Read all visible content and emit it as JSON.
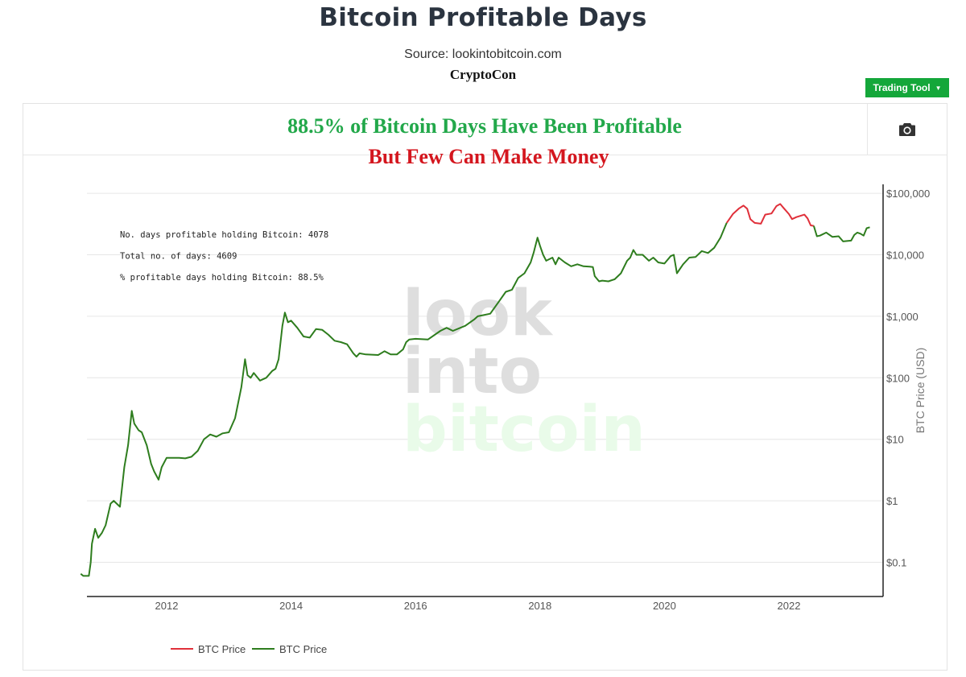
{
  "page": {
    "title": "Bitcoin Profitable Days",
    "source": "Source: lookintobitcoin.com",
    "author": "CryptoCon"
  },
  "toolbar": {
    "trading_tool_label": "Trading Tool",
    "camera_icon": "camera-icon"
  },
  "colors": {
    "green_series": "#2e7d1e",
    "red_series": "#e0303a",
    "headline_green": "#22a84a",
    "headline_red": "#d4161e",
    "button_green": "#14a73a",
    "watermark_gray": "#dedede",
    "watermark_green": "#e9fbe9"
  },
  "chart_data": {
    "type": "line",
    "title_line1": "88.5% of Bitcoin Days Have Been Profitable",
    "title_line2": "But Few Can Make Money",
    "ylabel": "BTC Price (USD)",
    "yscale": "log",
    "ylim": [
      0.03,
      150000
    ],
    "xlim": [
      2010.62,
      2023.35
    ],
    "y_ticks": [
      0.1,
      1,
      10,
      100,
      1000,
      10000,
      100000
    ],
    "y_tick_labels": [
      "$0.1",
      "$1",
      "$10",
      "$100",
      "$1,000",
      "$10,000",
      "$100,000"
    ],
    "x_ticks": [
      2012,
      2014,
      2016,
      2018,
      2020,
      2022
    ],
    "x_tick_labels": [
      "2012",
      "2014",
      "2016",
      "2018",
      "2020",
      "2022"
    ],
    "grid": true,
    "legend_position": "bottom-left",
    "annotations": [
      "No. days profitable holding Bitcoin: 4078",
      "Total no. of days: 4609",
      "% profitable days holding Bitcoin: 88.5%"
    ],
    "watermark": [
      "look",
      "into",
      "bitcoin"
    ],
    "series": [
      {
        "name": "BTC Price",
        "color": "red",
        "segments": [
          [
            [
              2021.0,
              33000
            ],
            [
              2021.1,
              46000
            ],
            [
              2021.2,
              57000
            ],
            [
              2021.27,
              63000
            ],
            [
              2021.33,
              56000
            ],
            [
              2021.38,
              38000
            ],
            [
              2021.45,
              33000
            ],
            [
              2021.55,
              32000
            ],
            [
              2021.62,
              45000
            ],
            [
              2021.72,
              47000
            ],
            [
              2021.8,
              62000
            ],
            [
              2021.86,
              67000
            ],
            [
              2021.92,
              57000
            ],
            [
              2022.0,
              46000
            ],
            [
              2022.05,
              38000
            ],
            [
              2022.12,
              41000
            ],
            [
              2022.25,
              45000
            ],
            [
              2022.3,
              39000
            ],
            [
              2022.35,
              30000
            ],
            [
              2022.4,
              29500
            ]
          ]
        ]
      },
      {
        "name": "BTC Price",
        "color": "green",
        "segments": [
          [
            [
              2010.62,
              0.065
            ],
            [
              2010.66,
              0.06
            ],
            [
              2010.75,
              0.06
            ],
            [
              2010.78,
              0.1
            ],
            [
              2010.8,
              0.2
            ],
            [
              2010.85,
              0.35
            ],
            [
              2010.9,
              0.25
            ],
            [
              2010.96,
              0.3
            ],
            [
              2011.02,
              0.4
            ],
            [
              2011.1,
              0.9
            ],
            [
              2011.15,
              1.0
            ],
            [
              2011.25,
              0.8
            ],
            [
              2011.32,
              3.5
            ],
            [
              2011.38,
              8
            ],
            [
              2011.44,
              29
            ],
            [
              2011.48,
              18
            ],
            [
              2011.55,
              14
            ],
            [
              2011.6,
              13
            ],
            [
              2011.68,
              8
            ],
            [
              2011.75,
              4
            ],
            [
              2011.8,
              3
            ],
            [
              2011.87,
              2.2
            ],
            [
              2011.92,
              3.5
            ],
            [
              2012.0,
              5
            ],
            [
              2012.1,
              5
            ],
            [
              2012.2,
              5
            ],
            [
              2012.3,
              4.9
            ],
            [
              2012.4,
              5.2
            ],
            [
              2012.5,
              6.5
            ],
            [
              2012.6,
              10
            ],
            [
              2012.7,
              12
            ],
            [
              2012.8,
              11
            ],
            [
              2012.9,
              12.5
            ],
            [
              2013.0,
              13
            ],
            [
              2013.1,
              22
            ],
            [
              2013.2,
              70
            ],
            [
              2013.26,
              200
            ],
            [
              2013.3,
              110
            ],
            [
              2013.35,
              100
            ],
            [
              2013.4,
              120
            ],
            [
              2013.5,
              90
            ],
            [
              2013.6,
              100
            ],
            [
              2013.7,
              130
            ],
            [
              2013.75,
              140
            ],
            [
              2013.8,
              200
            ],
            [
              2013.86,
              700
            ],
            [
              2013.9,
              1150
            ],
            [
              2013.95,
              800
            ],
            [
              2014.0,
              850
            ],
            [
              2014.1,
              650
            ],
            [
              2014.2,
              470
            ],
            [
              2014.3,
              450
            ],
            [
              2014.4,
              620
            ],
            [
              2014.5,
              600
            ],
            [
              2014.6,
              500
            ],
            [
              2014.7,
              400
            ],
            [
              2014.8,
              380
            ],
            [
              2014.9,
              350
            ],
            [
              2015.0,
              250
            ],
            [
              2015.05,
              220
            ],
            [
              2015.1,
              250
            ],
            [
              2015.2,
              240
            ],
            [
              2015.4,
              235
            ],
            [
              2015.5,
              270
            ],
            [
              2015.6,
              240
            ],
            [
              2015.7,
              240
            ],
            [
              2015.8,
              290
            ],
            [
              2015.85,
              380
            ],
            [
              2015.9,
              420
            ],
            [
              2016.0,
              430
            ],
            [
              2016.2,
              420
            ],
            [
              2016.4,
              580
            ],
            [
              2016.5,
              650
            ],
            [
              2016.6,
              580
            ],
            [
              2016.8,
              700
            ],
            [
              2016.95,
              900
            ],
            [
              2017.0,
              1000
            ],
            [
              2017.2,
              1100
            ],
            [
              2017.35,
              1800
            ],
            [
              2017.45,
              2500
            ],
            [
              2017.55,
              2700
            ],
            [
              2017.65,
              4200
            ],
            [
              2017.75,
              5000
            ],
            [
              2017.85,
              7500
            ],
            [
              2017.9,
              11000
            ],
            [
              2017.96,
              19000
            ],
            [
              2018.0,
              14000
            ],
            [
              2018.05,
              10000
            ],
            [
              2018.1,
              8000
            ],
            [
              2018.2,
              9000
            ],
            [
              2018.25,
              7000
            ],
            [
              2018.3,
              9000
            ],
            [
              2018.4,
              7500
            ],
            [
              2018.5,
              6500
            ],
            [
              2018.6,
              7000
            ],
            [
              2018.7,
              6500
            ],
            [
              2018.8,
              6400
            ],
            [
              2018.85,
              6300
            ],
            [
              2018.88,
              4500
            ],
            [
              2018.95,
              3700
            ],
            [
              2019.0,
              3800
            ],
            [
              2019.1,
              3700
            ],
            [
              2019.2,
              4000
            ],
            [
              2019.3,
              5000
            ],
            [
              2019.4,
              8000
            ],
            [
              2019.45,
              9000
            ],
            [
              2019.5,
              12000
            ],
            [
              2019.55,
              10000
            ],
            [
              2019.65,
              10000
            ],
            [
              2019.75,
              8000
            ],
            [
              2019.82,
              9000
            ],
            [
              2019.9,
              7500
            ],
            [
              2020.0,
              7200
            ],
            [
              2020.1,
              9500
            ],
            [
              2020.15,
              10000
            ],
            [
              2020.2,
              5000
            ],
            [
              2020.3,
              7000
            ],
            [
              2020.4,
              9000
            ],
            [
              2020.5,
              9200
            ],
            [
              2020.6,
              11500
            ],
            [
              2020.7,
              10700
            ],
            [
              2020.8,
              13000
            ],
            [
              2020.9,
              19000
            ],
            [
              2020.97,
              28000
            ],
            [
              2021.0,
              33000
            ]
          ],
          [
            [
              2022.4,
              29500
            ],
            [
              2022.45,
              20000
            ],
            [
              2022.5,
              20500
            ],
            [
              2022.6,
              23000
            ],
            [
              2022.7,
              19500
            ],
            [
              2022.8,
              20000
            ],
            [
              2022.87,
              16500
            ],
            [
              2022.95,
              16800
            ],
            [
              2023.0,
              17000
            ],
            [
              2023.05,
              21000
            ],
            [
              2023.1,
              23000
            ],
            [
              2023.15,
              22000
            ],
            [
              2023.2,
              20500
            ],
            [
              2023.25,
              27000
            ],
            [
              2023.3,
              28000
            ]
          ]
        ]
      }
    ],
    "legend": [
      {
        "label": "BTC Price",
        "color": "red"
      },
      {
        "label": "BTC Price",
        "color": "green"
      }
    ]
  }
}
